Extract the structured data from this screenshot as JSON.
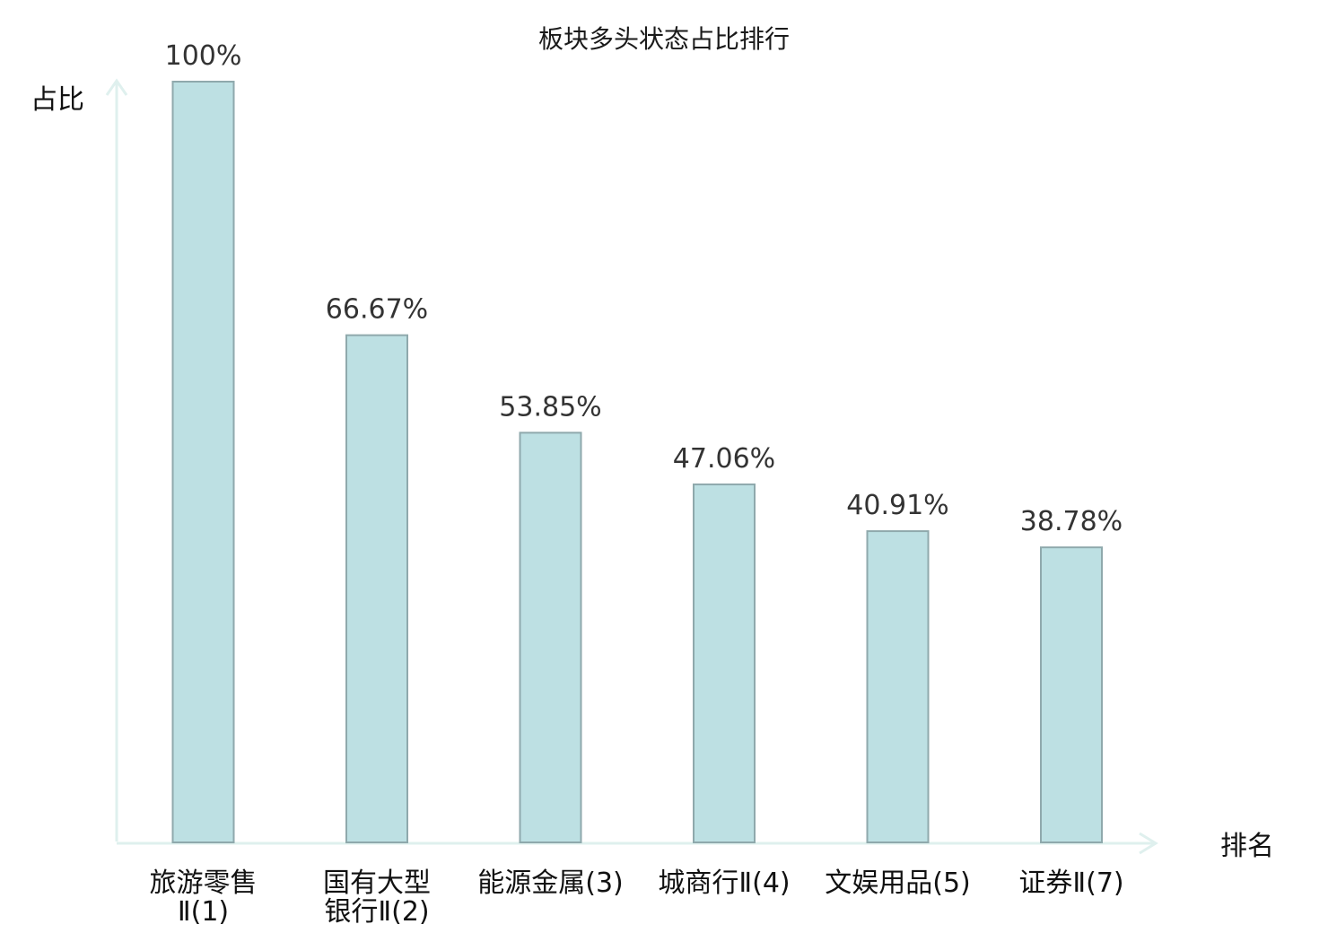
{
  "chart_data": {
    "type": "bar",
    "title": "板块多头状态占比排行",
    "ylabel": "占比",
    "xlabel": "排名",
    "ylim": [
      0,
      100
    ],
    "categories": [
      [
        "旅游零售",
        "Ⅱ(1)"
      ],
      [
        "国有大型",
        "银行Ⅱ(2)"
      ],
      [
        "能源金属(3)"
      ],
      [
        "城商行Ⅱ(4)"
      ],
      [
        "文娱用品(5)"
      ],
      [
        "证券Ⅱ(7)"
      ]
    ],
    "values": [
      100,
      66.67,
      53.85,
      47.06,
      40.91,
      38.78
    ],
    "value_labels": [
      "100%",
      "66.67%",
      "53.85%",
      "47.06%",
      "40.91%",
      "38.78%"
    ],
    "highlight_index": 5,
    "grid": false,
    "colors": {
      "bar_fill": "#bde0e3",
      "bar_stroke": "#8fa9ac",
      "axis": "#dff0ee",
      "highlight_label": "#e8141b",
      "label": "#111111",
      "value_label": "#333333"
    }
  }
}
